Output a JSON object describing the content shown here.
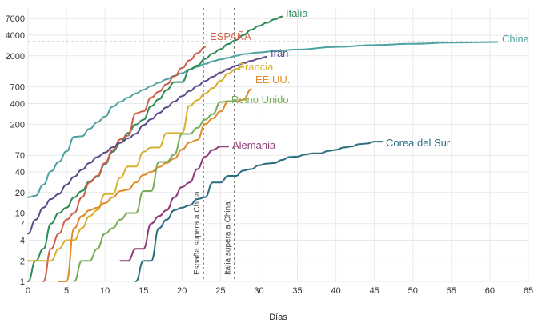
{
  "chart_data": {
    "type": "line",
    "title": "",
    "xlabel": "Días",
    "ylabel": "",
    "y_scale": "log",
    "xlim": [
      0,
      65
    ],
    "ylim": [
      1,
      10000
    ],
    "grid": true,
    "legend": "inline labels at line ends",
    "x_ticks": [
      "0",
      "5",
      "10",
      "15",
      "20",
      "25",
      "30",
      "35",
      "40",
      "45",
      "50",
      "55",
      "60",
      "65"
    ],
    "y_ticks": [
      "1",
      "2",
      "4",
      "7",
      "10",
      "20",
      "40",
      "70",
      "200",
      "400",
      "700",
      "2000",
      "4000",
      "7000"
    ],
    "reference_lines": [
      {
        "orientation": "horizontal",
        "y": 3200
      },
      {
        "orientation": "vertical",
        "x": 22.8,
        "label": "España supera a China"
      },
      {
        "orientation": "vertical",
        "x": 26.8,
        "label": "Italia supera a China"
      }
    ],
    "series": [
      {
        "name": "China",
        "color": "#4aa3a2",
        "x": [
          0,
          1,
          2,
          3,
          4,
          5,
          6,
          7,
          8,
          9,
          10,
          11,
          12,
          13,
          14,
          15,
          16,
          17,
          18,
          19,
          20,
          21,
          22,
          23,
          24,
          25,
          26,
          27,
          28,
          30,
          32,
          35,
          40,
          45,
          50,
          55,
          61
        ],
        "y": [
          17,
          18,
          26,
          41,
          56,
          80,
          131,
          133,
          171,
          213,
          259,
          361,
          425,
          490,
          562,
          637,
          722,
          811,
          908,
          1016,
          1113,
          1259,
          1380,
          1523,
          1665,
          1770,
          1868,
          2004,
          2118,
          2236,
          2345,
          2470,
          2700,
          2870,
          3000,
          3120,
          3180
        ]
      },
      {
        "name": "Italia",
        "color": "#2e8b57",
        "x": [
          0,
          1,
          2,
          3,
          4,
          5,
          6,
          7,
          8,
          9,
          10,
          11,
          12,
          13,
          14,
          15,
          16,
          17,
          18,
          19,
          20,
          21,
          22,
          23,
          24,
          25,
          26,
          27,
          28,
          29,
          30,
          31,
          32,
          33
        ],
        "y": [
          1,
          2,
          3,
          7,
          10,
          12,
          17,
          21,
          29,
          34,
          52,
          79,
          107,
          148,
          197,
          233,
          366,
          463,
          631,
          827,
          827,
          1266,
          1441,
          1809,
          2158,
          2503,
          2978,
          3405,
          4032,
          4825,
          5476,
          6077,
          6820,
          7503
        ]
      },
      {
        "name": "España",
        "color": "#d0604a",
        "x": [
          2,
          3,
          4,
          5,
          6,
          7,
          8,
          9,
          10,
          11,
          12,
          13,
          14,
          15,
          16,
          17,
          18,
          19,
          20,
          21,
          22,
          23
        ],
        "y": [
          1,
          3,
          5,
          8,
          10,
          17,
          28,
          35,
          54,
          84,
          120,
          136,
          288,
          309,
          491,
          598,
          767,
          1002,
          1326,
          1720,
          2182,
          2700
        ]
      },
      {
        "name": "Irán",
        "color": "#5c4a8a",
        "x": [
          0,
          1,
          2,
          3,
          4,
          5,
          6,
          7,
          8,
          9,
          10,
          11,
          12,
          13,
          14,
          15,
          16,
          17,
          18,
          19,
          20,
          21,
          22,
          23,
          24,
          25,
          26,
          27,
          28,
          29,
          30,
          31
        ],
        "y": [
          5,
          8,
          12,
          16,
          19,
          26,
          34,
          43,
          54,
          66,
          77,
          92,
          107,
          124,
          145,
          194,
          237,
          291,
          354,
          429,
          514,
          611,
          724,
          853,
          988,
          1135,
          1284,
          1433,
          1556,
          1685,
          1812,
          1934
        ]
      },
      {
        "name": "Francia",
        "color": "#d8b22e",
        "x": [
          0,
          1,
          2,
          3,
          4,
          5,
          6,
          7,
          8,
          9,
          10,
          11,
          12,
          13,
          14,
          15,
          16,
          17,
          18,
          19,
          20,
          21,
          22,
          23,
          24,
          25,
          26,
          27,
          28
        ],
        "y": [
          2,
          2,
          2,
          2,
          3,
          4,
          4,
          6,
          9,
          11,
          19,
          19,
          33,
          48,
          48,
          79,
          91,
          91,
          148,
          148,
          148,
          372,
          450,
          562,
          674,
          860,
          1100,
          1281,
          1432
        ]
      },
      {
        "name": "EE.UU.",
        "color": "#e0892a",
        "x": [
          4,
          5,
          6,
          7,
          8,
          9,
          10,
          11,
          12,
          13,
          14,
          15,
          16,
          17,
          18,
          19,
          20,
          21,
          22,
          23,
          24,
          25,
          26,
          27,
          28,
          29
        ],
        "y": [
          1,
          1,
          6,
          9,
          11,
          12,
          14,
          17,
          21,
          22,
          28,
          36,
          40,
          47,
          54,
          63,
          85,
          108,
          118,
          200,
          244,
          307,
          427,
          432,
          457,
          650
        ]
      },
      {
        "name": "Reino Unido",
        "color": "#79ad55",
        "x": [
          6,
          7,
          8,
          9,
          10,
          11,
          12,
          13,
          14,
          15,
          16,
          17,
          18,
          19,
          20,
          21,
          22,
          23,
          24,
          25,
          26,
          27
        ],
        "y": [
          1,
          2,
          2,
          3,
          5,
          6,
          8,
          10,
          10,
          21,
          21,
          56,
          56,
          72,
          144,
          144,
          177,
          233,
          281,
          422,
          433,
          433
        ]
      },
      {
        "name": "Alemania",
        "color": "#8e3b7a",
        "x": [
          12,
          13,
          14,
          15,
          16,
          17,
          18,
          19,
          20,
          21,
          22,
          23,
          24,
          25,
          26
        ],
        "y": [
          2,
          2,
          3,
          3,
          7,
          9,
          11,
          17,
          24,
          28,
          44,
          67,
          84,
          94,
          94
        ]
      },
      {
        "name": "Corea del Sur",
        "color": "#2a6e80",
        "x": [
          14,
          15,
          16,
          17,
          18,
          19,
          20,
          21,
          22,
          23,
          24,
          25,
          26,
          27,
          28,
          29,
          30,
          31,
          32,
          33,
          34,
          35,
          36,
          37,
          38,
          39,
          40,
          41,
          42,
          43,
          44,
          45,
          46
        ],
        "y": [
          1,
          2,
          2,
          6,
          8,
          11,
          12,
          13,
          16,
          17,
          28,
          28,
          35,
          35,
          42,
          44,
          50,
          53,
          54,
          60,
          66,
          67,
          72,
          75,
          75,
          81,
          84,
          91,
          94,
          102,
          104,
          111,
          111
        ]
      }
    ],
    "series_labels": {
      "China": "China",
      "Italia": "Italia",
      "España": "ESPAÑA",
      "Irán": "Irán",
      "Francia": "Francia",
      "EE.UU.": "EE.UU.",
      "Reino Unido": "Reino Unido",
      "Alemania": "Alemania",
      "Corea del Sur": "Corea del Sur"
    }
  }
}
